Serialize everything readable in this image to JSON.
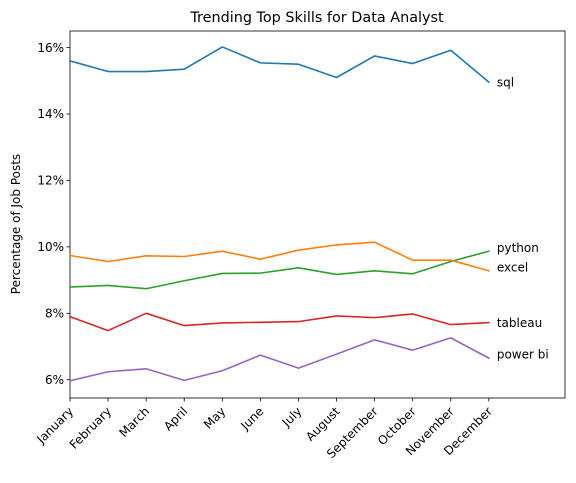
{
  "chart_data": {
    "type": "line",
    "title": "Trending Top  Skills for  Data Analyst",
    "xlabel": "",
    "ylabel": "Percentage of Job Posts",
    "categories": [
      "January",
      "February",
      "March",
      "April",
      "May",
      "June",
      "July",
      "August",
      "September",
      "October",
      "November",
      "December"
    ],
    "x_range": [
      0,
      13
    ],
    "ylim": [
      5.45,
      16.5
    ],
    "yticks": [
      6,
      8,
      10,
      12,
      14,
      16
    ],
    "ytick_labels": [
      "6%",
      "8%",
      "10%",
      "12%",
      "14%",
      "16%"
    ],
    "grid": false,
    "legend": "none; series labeled at right end of lines",
    "series": [
      {
        "name": "sql",
        "color": "#1f77b4",
        "values": [
          15.6,
          15.28,
          15.28,
          15.35,
          16.02,
          15.54,
          15.5,
          15.1,
          15.75,
          15.52,
          15.92,
          14.96
        ]
      },
      {
        "name": "python",
        "color": "#2ca02c",
        "values": [
          8.79,
          8.84,
          8.74,
          8.98,
          9.2,
          9.21,
          9.37,
          9.17,
          9.28,
          9.19,
          9.56,
          9.87
        ]
      },
      {
        "name": "excel",
        "color": "#ff7f0e",
        "values": [
          9.74,
          9.56,
          9.73,
          9.71,
          9.87,
          9.63,
          9.9,
          10.06,
          10.14,
          9.6,
          9.6,
          9.28
        ]
      },
      {
        "name": "tableau",
        "color": "#d62728",
        "values": [
          7.9,
          7.48,
          8.0,
          7.63,
          7.71,
          7.73,
          7.75,
          7.92,
          7.87,
          7.98,
          7.66,
          7.72
        ]
      },
      {
        "name": "power bi",
        "color": "#9467bd",
        "values": [
          5.97,
          6.24,
          6.33,
          5.98,
          6.27,
          6.74,
          6.35,
          6.77,
          7.2,
          6.89,
          7.26,
          6.65
        ]
      }
    ],
    "label_offsets_y": {
      "sql": 14.96,
      "python": 9.97,
      "excel": 9.39,
      "tableau": 7.72,
      "power bi": 6.76
    }
  }
}
